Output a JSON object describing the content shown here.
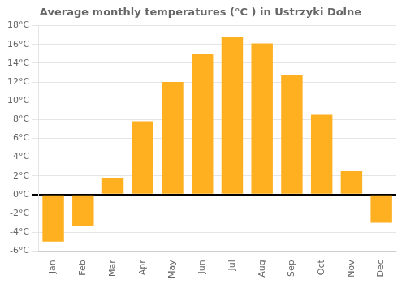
{
  "chart_data": {
    "type": "bar",
    "title": "Average monthly temperatures (°C ) in Ustrzyki Dolne",
    "categories": [
      "Jan",
      "Feb",
      "Mar",
      "Apr",
      "May",
      "Jun",
      "Jul",
      "Aug",
      "Sep",
      "Oct",
      "Nov",
      "Dec"
    ],
    "values": [
      -5.0,
      -3.3,
      1.8,
      7.8,
      12.0,
      15.0,
      16.8,
      16.1,
      12.7,
      8.5,
      2.5,
      -3.0
    ],
    "color": "#FFB020",
    "ylim": [
      -6,
      18
    ],
    "yticks": [
      {
        "value": -6,
        "label": "-6°C"
      },
      {
        "value": -4,
        "label": "-4°C"
      },
      {
        "value": -2,
        "label": "-2°C"
      },
      {
        "value": 0,
        "label": "0°C"
      },
      {
        "value": 2,
        "label": "2°C"
      },
      {
        "value": 4,
        "label": "4°C"
      },
      {
        "value": 6,
        "label": "6°C"
      },
      {
        "value": 8,
        "label": "8°C"
      },
      {
        "value": 10,
        "label": "10°C"
      },
      {
        "value": 12,
        "label": "12°C"
      },
      {
        "value": 14,
        "label": "14°C"
      },
      {
        "value": 16,
        "label": "16°C"
      },
      {
        "value": 18,
        "label": "18°C"
      }
    ],
    "grid": true
  }
}
